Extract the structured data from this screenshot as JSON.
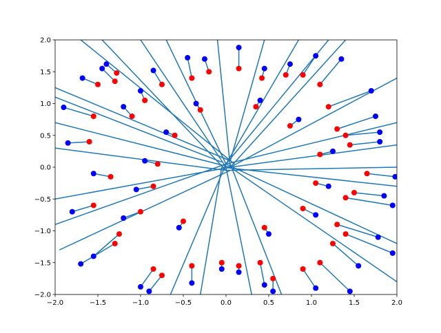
{
  "chart_data": {
    "type": "scatter",
    "title": "",
    "xlabel": "",
    "ylabel": "",
    "xlim": [
      -2.0,
      2.0
    ],
    "ylim": [
      -2.0,
      2.0
    ],
    "x_ticks": [
      "−2.0",
      "−1.5",
      "−1.0",
      "−0.5",
      "0.0",
      "0.5",
      "1.0",
      "1.5",
      "2.0"
    ],
    "y_ticks": [
      "−2.0",
      "−1.5",
      "−1.0",
      "−0.5",
      "0.0",
      "0.5",
      "1.0",
      "1.5",
      "2.0"
    ],
    "x_tick_values": [
      -2.0,
      -1.5,
      -1.0,
      -0.5,
      0.0,
      0.5,
      1.0,
      1.5,
      2.0
    ],
    "y_tick_values": [
      -2.0,
      -1.5,
      -1.0,
      -0.5,
      0.0,
      0.5,
      1.0,
      1.5,
      2.0
    ],
    "grid": false,
    "legend": "none",
    "colors": {
      "red_points": "#ff0000",
      "blue_points": "#0000ff",
      "segments": "#1f77b4"
    },
    "segments": [
      {
        "blue": [
          -1.4,
          1.62
        ],
        "red": [
          -1.28,
          1.48
        ]
      },
      {
        "blue": [
          -1.45,
          1.55
        ],
        "red": [
          -1.3,
          1.35
        ]
      },
      {
        "blue": [
          -1.68,
          1.4
        ],
        "red": [
          -1.5,
          1.3
        ]
      },
      {
        "blue": [
          -1.9,
          0.94
        ],
        "red": [
          -1.55,
          0.8
        ]
      },
      {
        "blue": [
          -1.85,
          0.38
        ],
        "red": [
          -1.6,
          0.4
        ]
      },
      {
        "blue": [
          -1.55,
          -0.1
        ],
        "red": [
          -1.35,
          -0.15
        ]
      },
      {
        "blue": [
          -1.8,
          -0.7
        ],
        "red": [
          -1.55,
          -0.6
        ]
      },
      {
        "blue": [
          -1.7,
          -1.52
        ],
        "red": [
          -1.3,
          -1.2
        ]
      },
      {
        "blue": [
          -1.55,
          -1.4
        ],
        "red": [
          -1.25,
          -1.05
        ]
      },
      {
        "blue": [
          -1.0,
          -1.88
        ],
        "red": [
          -0.85,
          -1.6
        ]
      },
      {
        "blue": [
          -0.9,
          -1.95
        ],
        "red": [
          -0.75,
          -1.7
        ]
      },
      {
        "blue": [
          -0.4,
          -1.82
        ],
        "red": [
          -0.4,
          -1.55
        ]
      },
      {
        "blue": [
          -0.05,
          -1.6
        ],
        "red": [
          -0.05,
          -1.5
        ]
      },
      {
        "blue": [
          0.15,
          -1.65
        ],
        "red": [
          0.15,
          -1.55
        ]
      },
      {
        "blue": [
          0.45,
          -1.85
        ],
        "red": [
          0.4,
          -1.5
        ]
      },
      {
        "blue": [
          0.55,
          -1.95
        ],
        "red": [
          0.55,
          -1.75
        ]
      },
      {
        "blue": [
          1.05,
          -1.9
        ],
        "red": [
          0.9,
          -1.6
        ]
      },
      {
        "blue": [
          1.45,
          -1.95
        ],
        "red": [
          1.1,
          -1.5
        ]
      },
      {
        "blue": [
          1.55,
          -1.55
        ],
        "red": [
          1.25,
          -1.2
        ]
      },
      {
        "blue": [
          1.95,
          -1.35
        ],
        "red": [
          1.4,
          -1.05
        ]
      },
      {
        "blue": [
          1.78,
          -1.1
        ],
        "red": [
          1.3,
          -0.9
        ]
      },
      {
        "blue": [
          1.95,
          -0.6
        ],
        "red": [
          1.4,
          -0.48
        ]
      },
      {
        "blue": [
          1.85,
          -0.45
        ],
        "red": [
          1.5,
          -0.4
        ]
      },
      {
        "blue": [
          1.98,
          -0.15
        ],
        "red": [
          1.65,
          -0.1
        ]
      },
      {
        "blue": [
          1.8,
          0.4
        ],
        "red": [
          1.45,
          0.35
        ]
      },
      {
        "blue": [
          1.8,
          0.55
        ],
        "red": [
          1.4,
          0.5
        ]
      },
      {
        "blue": [
          1.75,
          0.8
        ],
        "red": [
          1.3,
          0.6
        ]
      },
      {
        "blue": [
          1.7,
          1.2
        ],
        "red": [
          1.2,
          0.95
        ]
      },
      {
        "blue": [
          1.35,
          1.7
        ],
        "red": [
          1.1,
          1.3
        ]
      },
      {
        "blue": [
          1.05,
          1.75
        ],
        "red": [
          0.9,
          1.45
        ]
      },
      {
        "blue": [
          0.75,
          1.62
        ],
        "red": [
          0.7,
          1.45
        ]
      },
      {
        "blue": [
          0.45,
          1.55
        ],
        "red": [
          0.42,
          1.4
        ]
      },
      {
        "blue": [
          0.15,
          1.88
        ],
        "red": [
          0.15,
          1.55
        ]
      },
      {
        "blue": [
          -0.25,
          1.7
        ],
        "red": [
          -0.2,
          1.5
        ]
      },
      {
        "blue": [
          -0.45,
          1.72
        ],
        "red": [
          -0.4,
          1.4
        ]
      },
      {
        "blue": [
          -0.85,
          1.52
        ],
        "red": [
          -0.75,
          1.3
        ]
      },
      {
        "blue": [
          -1.0,
          1.2
        ],
        "red": [
          -0.95,
          1.05
        ]
      },
      {
        "blue": [
          -1.2,
          0.95
        ],
        "red": [
          -1.1,
          0.8
        ]
      },
      {
        "blue": [
          -0.95,
          0.1
        ],
        "red": [
          -0.8,
          0.05
        ]
      },
      {
        "blue": [
          -1.05,
          -0.35
        ],
        "red": [
          -0.85,
          -0.3
        ]
      },
      {
        "blue": [
          -1.2,
          -0.8
        ],
        "red": [
          -1.0,
          -0.7
        ]
      },
      {
        "blue": [
          -0.55,
          -0.95
        ],
        "red": [
          -0.5,
          -0.85
        ]
      },
      {
        "blue": [
          0.5,
          -1.05
        ],
        "red": [
          0.45,
          -0.95
        ]
      },
      {
        "blue": [
          1.05,
          -0.75
        ],
        "red": [
          0.9,
          -0.65
        ]
      },
      {
        "blue": [
          1.2,
          -0.3
        ],
        "red": [
          1.05,
          -0.25
        ]
      },
      {
        "blue": [
          1.25,
          0.25
        ],
        "red": [
          1.1,
          0.2
        ]
      },
      {
        "blue": [
          0.85,
          0.75
        ],
        "red": [
          0.75,
          0.65
        ]
      },
      {
        "blue": [
          0.4,
          1.05
        ],
        "red": [
          0.35,
          0.95
        ]
      },
      {
        "blue": [
          -0.35,
          1.0
        ],
        "red": [
          -0.3,
          0.9
        ]
      },
      {
        "blue": [
          -0.7,
          0.55
        ],
        "red": [
          -0.6,
          0.5
        ]
      }
    ],
    "lines_to_center": [
      {
        "from": [
          -1.0,
          2.0
        ],
        "to": [
          0.0,
          0.0
        ]
      },
      {
        "from": [
          -1.7,
          2.0
        ],
        "to": [
          0.1,
          0.05
        ]
      },
      {
        "from": [
          -2.0,
          1.25
        ],
        "to": [
          0.05,
          0.1
        ]
      },
      {
        "from": [
          -2.0,
          1.1
        ],
        "to": [
          -0.05,
          0.08
        ]
      },
      {
        "from": [
          -2.0,
          0.7
        ],
        "to": [
          0.05,
          0.0
        ]
      },
      {
        "from": [
          -2.0,
          0.3
        ],
        "to": [
          0.0,
          -0.05
        ]
      },
      {
        "from": [
          -2.0,
          -0.5
        ],
        "to": [
          0.05,
          0.0
        ]
      },
      {
        "from": [
          -2.0,
          -0.9
        ],
        "to": [
          0.0,
          0.05
        ]
      },
      {
        "from": [
          -1.95,
          -1.3
        ],
        "to": [
          0.05,
          -0.05
        ]
      },
      {
        "from": [
          -0.65,
          -2.0
        ],
        "to": [
          0.0,
          0.05
        ]
      },
      {
        "from": [
          -0.3,
          -2.0
        ],
        "to": [
          -0.05,
          0.0
        ]
      },
      {
        "from": [
          0.3,
          -2.0
        ],
        "to": [
          0.0,
          0.0
        ]
      },
      {
        "from": [
          0.65,
          -2.0
        ],
        "to": [
          0.05,
          0.05
        ]
      },
      {
        "from": [
          2.0,
          -1.8
        ],
        "to": [
          0.05,
          0.0
        ]
      },
      {
        "from": [
          2.0,
          -1.2
        ],
        "to": [
          0.0,
          0.05
        ]
      },
      {
        "from": [
          2.0,
          -0.3
        ],
        "to": [
          -0.05,
          0.0
        ]
      },
      {
        "from": [
          2.0,
          0.0
        ],
        "to": [
          0.0,
          -0.05
        ]
      },
      {
        "from": [
          2.0,
          0.35
        ],
        "to": [
          0.05,
          0.0
        ]
      },
      {
        "from": [
          2.0,
          0.7
        ],
        "to": [
          0.0,
          0.05
        ]
      },
      {
        "from": [
          1.4,
          2.0
        ],
        "to": [
          0.05,
          0.0
        ]
      },
      {
        "from": [
          0.85,
          2.0
        ],
        "to": [
          0.0,
          0.05
        ]
      },
      {
        "from": [
          0.45,
          2.0
        ],
        "to": [
          0.05,
          0.1
        ]
      },
      {
        "from": [
          -0.1,
          2.0
        ],
        "to": [
          0.05,
          0.0
        ]
      },
      {
        "from": [
          -0.7,
          2.0
        ],
        "to": [
          0.0,
          0.05
        ]
      },
      {
        "from": [
          1.2,
          2.0
        ],
        "to": [
          0.0,
          0.05
        ]
      },
      {
        "from": [
          -1.45,
          2.0
        ],
        "to": [
          0.0,
          -0.05
        ]
      },
      {
        "from": [
          2.0,
          1.4
        ],
        "to": [
          0.05,
          0.0
        ]
      }
    ]
  }
}
